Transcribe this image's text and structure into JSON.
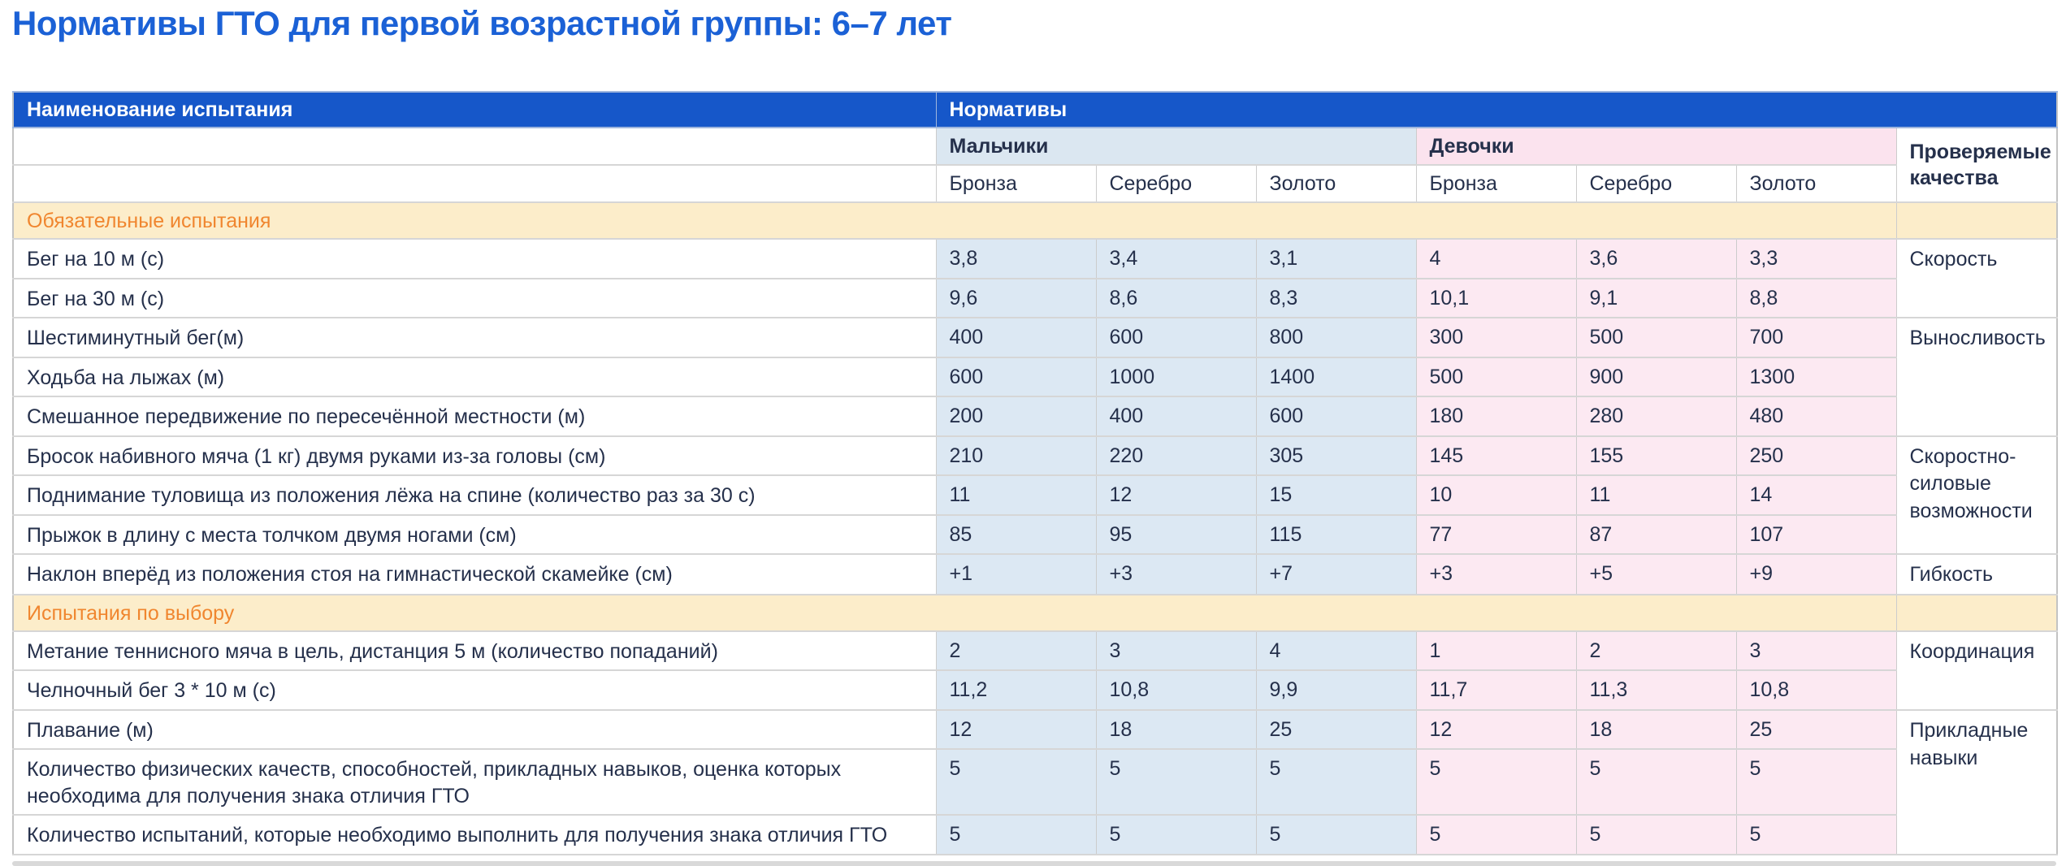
{
  "page": {
    "title": "Нормативы ГТО для первой возрастной группы: 6–7 лет"
  },
  "colors": {
    "title_blue": "#1b61d6",
    "header_blue": "#1657c9",
    "boys_bg": "#dce8f3",
    "girls_bg": "#fce9f2",
    "section_bg": "#fcedca",
    "section_text_orange": "#f0862f",
    "body_text_navy": "#25304b"
  },
  "table": {
    "header": {
      "name_col": "Наименование испытания",
      "normatives": "Нормативы",
      "boys": "Мальчики",
      "girls": "Девочки",
      "qualities": "Проверяемые качества",
      "medals": [
        "Бронза",
        "Серебро",
        "Золото"
      ]
    },
    "sections": [
      {
        "title": "Обязательные испытания",
        "rows": [
          {
            "name": "Бег на 10 м (с)",
            "boys": [
              "3,8",
              "3,4",
              "3,1"
            ],
            "girls": [
              "4",
              "3,6",
              "3,3"
            ],
            "quality": "Скорость",
            "quality_rowspan": 2
          },
          {
            "name": "Бег на 30 м (с)",
            "boys": [
              "9,6",
              "8,6",
              "8,3"
            ],
            "girls": [
              "10,1",
              "9,1",
              "8,8"
            ]
          },
          {
            "name": "Шестиминутный бег(м)",
            "boys": [
              "400",
              "600",
              "800"
            ],
            "girls": [
              "300",
              "500",
              "700"
            ],
            "quality": "Выносливость",
            "quality_rowspan": 3
          },
          {
            "name": "Ходьба на лыжах (м)",
            "boys": [
              "600",
              "1000",
              "1400"
            ],
            "girls": [
              "500",
              "900",
              "1300"
            ]
          },
          {
            "name": "Смешанное передвижение по пересечённой местности (м)",
            "boys": [
              "200",
              "400",
              "600"
            ],
            "girls": [
              "180",
              "280",
              "480"
            ]
          },
          {
            "name": "Бросок набивного мяча (1 кг) двумя руками из-за головы (см)",
            "boys": [
              "210",
              "220",
              "305"
            ],
            "girls": [
              "145",
              "155",
              "250"
            ],
            "quality": "Скоростно-силовые возможности",
            "quality_rowspan": 3
          },
          {
            "name": "Поднимание туловища из положения лёжа на спине (количество раз за 30 с)",
            "boys": [
              "11",
              "12",
              "15"
            ],
            "girls": [
              "10",
              "11",
              "14"
            ]
          },
          {
            "name": "Прыжок в длину с места толчком двумя ногами (см)",
            "boys": [
              "85",
              "95",
              "115"
            ],
            "girls": [
              "77",
              "87",
              "107"
            ]
          },
          {
            "name": "Наклон вперёд из положения стоя на гимнастической скамейке (см)",
            "boys": [
              "+1",
              "+3",
              "+7"
            ],
            "girls": [
              "+3",
              "+5",
              "+9"
            ],
            "quality": "Гибкость",
            "quality_rowspan": 1
          }
        ]
      },
      {
        "title": "Испытания по выбору",
        "rows": [
          {
            "name": "Метание теннисного мяча в цель, дистанция 5 м (количество попаданий)",
            "boys": [
              "2",
              "3",
              "4"
            ],
            "girls": [
              "1",
              "2",
              "3"
            ],
            "quality": "Координация",
            "quality_rowspan": 2
          },
          {
            "name": "Челночный бег 3 * 10 м (с)",
            "boys": [
              "11,2",
              "10,8",
              "9,9"
            ],
            "girls": [
              "11,7",
              "11,3",
              "10,8"
            ]
          },
          {
            "name": "Плавание (м)",
            "boys": [
              "12",
              "18",
              "25"
            ],
            "girls": [
              "12",
              "18",
              "25"
            ],
            "quality": "Прикладные навыки",
            "quality_rowspan": 3
          },
          {
            "name": "Количество физических качеств, способностей, прикладных навыков, оценка которых необходима для получения знака отличия ГТО",
            "boys": [
              "5",
              "5",
              "5"
            ],
            "girls": [
              "5",
              "5",
              "5"
            ]
          },
          {
            "name": "Количество испытаний, которые необходимо выполнить для получения знака отличия ГТО",
            "boys": [
              "5",
              "5",
              "5"
            ],
            "girls": [
              "5",
              "5",
              "5"
            ]
          }
        ]
      }
    ]
  }
}
